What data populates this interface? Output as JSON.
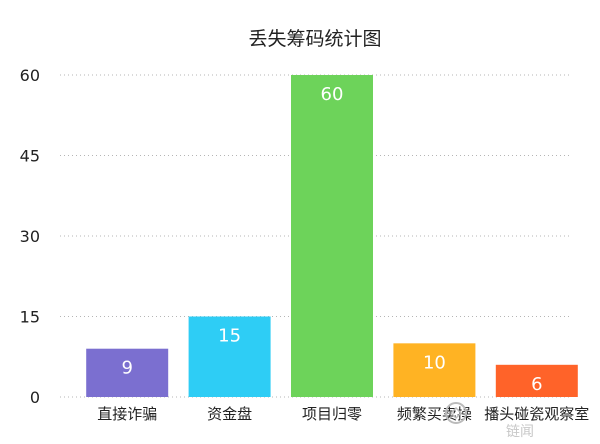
{
  "chart_data": {
    "type": "bar",
    "title": "丢失筹码统计图",
    "xlabel": "",
    "ylabel": "",
    "categories": [
      "直接诈骗",
      "资金盘",
      "项目归零",
      "频繁买卖操",
      "播头碰瓷观察室"
    ],
    "values": [
      9,
      15,
      60,
      10,
      6
    ],
    "data_labels": [
      "9",
      "15",
      "60",
      "10",
      "6"
    ],
    "ylim": [
      0,
      60
    ],
    "yticks": [
      0,
      15,
      30,
      45,
      60
    ],
    "ytick_labels": [
      "0",
      "15",
      "30",
      "45",
      "60"
    ],
    "grid": "horizontal dotted",
    "legend": "none",
    "colors": [
      "#7B6FD0",
      "#2ECDF5",
      "#6DD35A",
      "#FFB323",
      "#FF6329"
    ]
  },
  "watermark": {
    "text": "链闻",
    "color": "#c8c8c8"
  }
}
